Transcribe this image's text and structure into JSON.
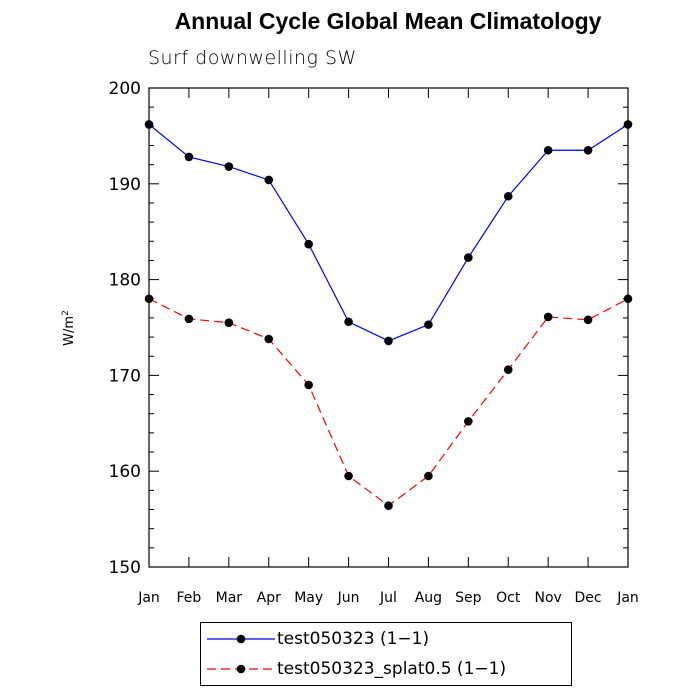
{
  "chart_data": {
    "type": "line",
    "title": "Annual Cycle Global Mean Climatology",
    "subtitle": "Surf downwelling SW",
    "ylabel": "W/m",
    "ylabel_sup": "2",
    "xlabel": "",
    "categories": [
      "Jan",
      "Feb",
      "Mar",
      "Apr",
      "May",
      "Jun",
      "Jul",
      "Aug",
      "Sep",
      "Oct",
      "Nov",
      "Dec",
      "Jan"
    ],
    "ylim": [
      150,
      200
    ],
    "yticks": [
      150,
      160,
      170,
      180,
      190,
      200
    ],
    "series": [
      {
        "name": "test050323 (1−1)",
        "color": "#0000ff",
        "dash": "solid",
        "values": [
          196.2,
          192.8,
          191.8,
          190.4,
          183.7,
          175.6,
          173.6,
          175.3,
          182.3,
          188.7,
          193.5,
          193.5,
          196.2
        ]
      },
      {
        "name": "test050323_splat0.5 (1−1)",
        "color": "#ff0000",
        "dash": "dashed",
        "values": [
          178.0,
          175.9,
          175.5,
          173.8,
          169.0,
          159.5,
          156.4,
          159.5,
          165.2,
          170.6,
          176.1,
          175.8,
          178.0
        ]
      }
    ],
    "legend_position": "bottom",
    "grid": false
  }
}
